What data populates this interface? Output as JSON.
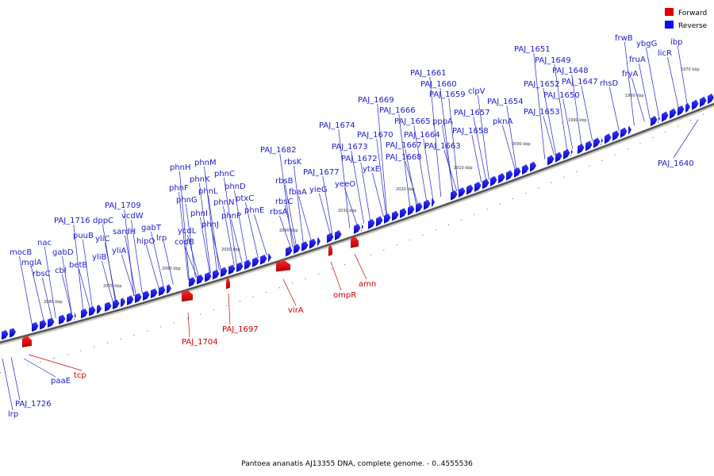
{
  "legend": {
    "items": [
      {
        "label": "Forward",
        "color": "#e00000"
      },
      {
        "label": "Reverse",
        "color": "#1010ee"
      }
    ]
  },
  "caption": "Pantoea ananatis AJ13355 DNA, complete genome. - 0..4555536",
  "scale_ticks": [
    {
      "label": "1970 kbp",
      "kbp": 1970
    },
    {
      "label": "1980 kbp",
      "kbp": 1980
    },
    {
      "label": "1990 kbp",
      "kbp": 1990
    },
    {
      "label": "2000 kbp",
      "kbp": 2000
    },
    {
      "label": "2010 kbp",
      "kbp": 2010
    },
    {
      "label": "2020 kbp",
      "kbp": 2020
    },
    {
      "label": "2030 kbp",
      "kbp": 2030
    },
    {
      "label": "2040 kbp",
      "kbp": 2040
    },
    {
      "label": "2050 kbp",
      "kbp": 2050
    },
    {
      "label": "2060 kbp",
      "kbp": 2060
    },
    {
      "label": "2070 kbp",
      "kbp": 2070
    },
    {
      "label": "2080 kbp",
      "kbp": 2080
    }
  ],
  "genes_reverse": [
    "ibp",
    "licR",
    "ybgG",
    "frwB",
    "fruA",
    "fryA",
    "rhsD",
    "PAJ_1651",
    "PAJ_1649",
    "PAJ_1648",
    "PAJ_1647",
    "PAJ_1652",
    "PAJ_1650",
    "PAJ_1653",
    "pknA",
    "PAJ_1654",
    "PAJ_1661",
    "PAJ_1660",
    "PAJ_1659",
    "clpV",
    "PAJ_1657",
    "PAJ_1658",
    "pppA",
    "PAJ_1663",
    "PAJ_1669",
    "PAJ_1666",
    "PAJ_1665",
    "PAJ_1664",
    "PAJ_1667",
    "PAJ_1668",
    "PAJ_1670",
    "PAJ_1674",
    "PAJ_1673",
    "PAJ_1672",
    "ytxE",
    "yeeO",
    "PAJ_1677",
    "yieG",
    "PAJ_1682",
    "rbsK",
    "rbsB",
    "fbaA",
    "rbsC",
    "rbsA",
    "phnM",
    "phnH",
    "phnK",
    "phnC",
    "phnF",
    "phnL",
    "phnD",
    "phnG",
    "phnN",
    "ptxC",
    "phnI",
    "phnP",
    "phnE",
    "phnJ",
    "ycdL",
    "codB",
    "PAJ_1709",
    "vcdW",
    "dppC",
    "PAJ_1716",
    "sardH",
    "gabT",
    "puuB",
    "yliC",
    "hipO",
    "lrp",
    "nac",
    "yliA",
    "gabD",
    "yliB",
    "mocB",
    "cbl",
    "betB",
    "mglA",
    "rbsC",
    "PAJ_1640",
    "paaE",
    "PAJ_1726",
    "lrp"
  ],
  "genes_forward": [
    "tcp",
    "PAJ_1704",
    "PAJ_1697",
    "virA",
    "ompR",
    "amn"
  ]
}
